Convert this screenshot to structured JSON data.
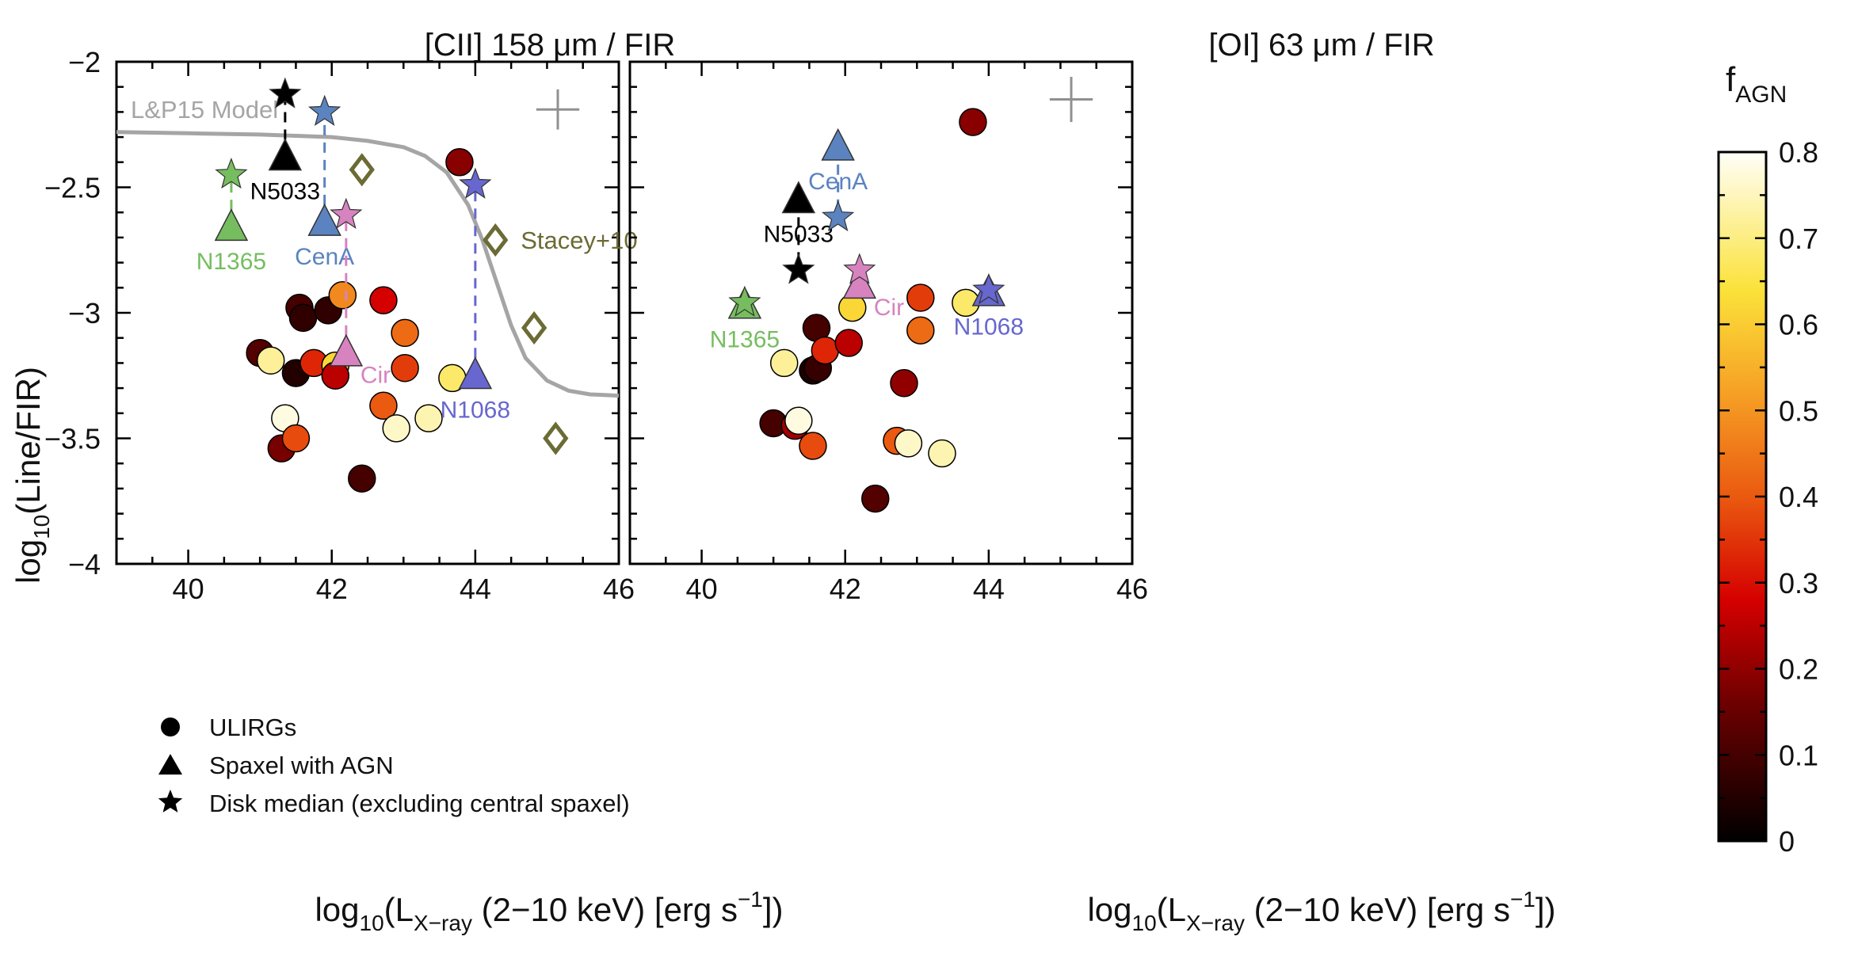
{
  "figure": {
    "y_label_prefix": "log",
    "y_label_sub": "10",
    "y_label_main": "(Line/FIR)",
    "x_label_prefix": "log",
    "x_label_sub1": "10",
    "x_label_L": "(L",
    "x_label_sub2": "X−ray",
    "x_label_unit": " (2−10 keV) [erg s",
    "x_label_sup": "−1",
    "x_label_end": "])"
  },
  "colorbar": {
    "label": "f",
    "label_sub": "AGN",
    "ticks": [
      0,
      0.1,
      0.2,
      0.3,
      0.4,
      0.5,
      0.6,
      0.7,
      0.8
    ],
    "tick_labels": [
      "0",
      "0.1",
      "0.2",
      "0.3",
      "0.4",
      "0.5",
      "0.6",
      "0.7",
      "0.8"
    ],
    "range": [
      0,
      0.8
    ]
  },
  "legend": {
    "items": [
      {
        "marker": "circle",
        "label": "ULIRGs"
      },
      {
        "marker": "triangle",
        "label": "Spaxel with AGN"
      },
      {
        "marker": "star",
        "label": "Disk median (excluding central spaxel)"
      }
    ]
  },
  "colors": {
    "CenA": "#5b83c0",
    "N1365": "#76bd5f",
    "Cir": "#d783bf",
    "N1068": "#6767cf",
    "N5033": "#000000",
    "model": "#a5a5a5",
    "stacey": "#6b6b35",
    "errbar": "#909090"
  },
  "chart_data": [
    {
      "type": "scatter",
      "title": "[CII] 158 μm / FIR",
      "xlabel": "log10(L_X-ray (2–10 keV) [erg s^-1])",
      "ylabel": "log10(Line/FIR)",
      "xlim": [
        39,
        46
      ],
      "ylim": [
        -4,
        -2
      ],
      "xticks": [
        40,
        42,
        44,
        46
      ],
      "xtick_labels": [
        "40",
        "42",
        "44",
        "46"
      ],
      "yticks": [
        -4,
        -3.5,
        -3,
        -2.5,
        -2
      ],
      "ytick_labels": [
        "−4",
        "−3.5",
        "−3",
        "−2.5",
        "−2"
      ],
      "ulirgs": [
        {
          "x": 41.0,
          "y": -3.16,
          "f": 0.12
        },
        {
          "x": 41.15,
          "y": -3.19,
          "f": 0.72
        },
        {
          "x": 41.3,
          "y": -3.54,
          "f": 0.17
        },
        {
          "x": 41.35,
          "y": -3.42,
          "f": 0.78
        },
        {
          "x": 41.5,
          "y": -3.24,
          "f": 0.05
        },
        {
          "x": 41.5,
          "y": -3.5,
          "f": 0.38
        },
        {
          "x": 41.55,
          "y": -2.98,
          "f": 0.1
        },
        {
          "x": 41.6,
          "y": -3.02,
          "f": 0.07
        },
        {
          "x": 41.75,
          "y": -3.2,
          "f": 0.33
        },
        {
          "x": 41.95,
          "y": -2.99,
          "f": 0.07
        },
        {
          "x": 42.05,
          "y": -3.21,
          "f": 0.62
        },
        {
          "x": 42.05,
          "y": -3.25,
          "f": 0.25
        },
        {
          "x": 42.15,
          "y": -2.93,
          "f": 0.48
        },
        {
          "x": 42.42,
          "y": -3.66,
          "f": 0.1
        },
        {
          "x": 42.72,
          "y": -2.95,
          "f": 0.28
        },
        {
          "x": 42.72,
          "y": -3.37,
          "f": 0.4
        },
        {
          "x": 42.9,
          "y": -3.46,
          "f": 0.76
        },
        {
          "x": 43.02,
          "y": -3.08,
          "f": 0.43
        },
        {
          "x": 43.02,
          "y": -3.22,
          "f": 0.36
        },
        {
          "x": 43.35,
          "y": -3.42,
          "f": 0.74
        },
        {
          "x": 43.68,
          "y": -3.26,
          "f": 0.68
        },
        {
          "x": 43.78,
          "y": -2.4,
          "f": 0.19
        }
      ],
      "agn": [
        {
          "name": "N5033",
          "tri": {
            "x": 41.35,
            "y": -2.38
          },
          "star": {
            "x": 41.35,
            "y": -2.13
          },
          "label_pos": "below"
        },
        {
          "name": "N1365",
          "tri": {
            "x": 40.6,
            "y": -2.66
          },
          "star": {
            "x": 40.6,
            "y": -2.45
          },
          "label_pos": "below"
        },
        {
          "name": "CenA",
          "tri": {
            "x": 41.9,
            "y": -2.64
          },
          "star": {
            "x": 41.9,
            "y": -2.2
          },
          "label_pos": "below"
        },
        {
          "name": "Cir",
          "tri": {
            "x": 42.2,
            "y": -3.16
          },
          "star": {
            "x": 42.2,
            "y": -2.61
          },
          "label_pos": "right"
        },
        {
          "name": "N1068",
          "tri": {
            "x": 44.0,
            "y": -3.25
          },
          "star": {
            "x": 44.0,
            "y": -2.49
          },
          "label_pos": "below"
        }
      ],
      "stacey10": {
        "label": "Stacey+10",
        "points": [
          {
            "x": 42.42,
            "y": -2.43
          },
          {
            "x": 44.28,
            "y": -2.71
          },
          {
            "x": 44.82,
            "y": -3.06
          },
          {
            "x": 45.12,
            "y": -3.5
          }
        ]
      },
      "model": {
        "label": "L&P15 Model",
        "x": [
          39.0,
          40.0,
          41.0,
          41.5,
          42.0,
          42.5,
          43.0,
          43.3,
          43.6,
          43.9,
          44.1,
          44.3,
          44.5,
          44.7,
          45.0,
          45.3,
          45.6,
          46.0
        ],
        "y": [
          -2.28,
          -2.285,
          -2.29,
          -2.295,
          -2.3,
          -2.315,
          -2.34,
          -2.375,
          -2.44,
          -2.57,
          -2.71,
          -2.88,
          -3.05,
          -3.18,
          -3.27,
          -3.31,
          -3.325,
          -3.33
        ]
      },
      "error_bar": {
        "x": 45.15,
        "y": -2.19,
        "dx": 0.3,
        "dy": 0.08
      }
    },
    {
      "type": "scatter",
      "title": "[OI] 63 μm / FIR",
      "xlabel": "log10(L_X-ray (2–10 keV) [erg s^-1])",
      "ylabel": "log10(Line/FIR)",
      "xlim": [
        39,
        46
      ],
      "ylim": [
        -4,
        -2
      ],
      "xticks": [
        40,
        42,
        44,
        46
      ],
      "xtick_labels": [
        "40",
        "42",
        "44",
        "46"
      ],
      "ulirgs": [
        {
          "x": 41.0,
          "y": -3.44,
          "f": 0.1
        },
        {
          "x": 41.15,
          "y": -3.2,
          "f": 0.72
        },
        {
          "x": 41.3,
          "y": -3.45,
          "f": 0.22
        },
        {
          "x": 41.35,
          "y": -3.43,
          "f": 0.78
        },
        {
          "x": 41.55,
          "y": -3.23,
          "f": 0.04
        },
        {
          "x": 41.55,
          "y": -3.53,
          "f": 0.38
        },
        {
          "x": 41.6,
          "y": -3.06,
          "f": 0.1
        },
        {
          "x": 41.62,
          "y": -3.22,
          "f": 0.08
        },
        {
          "x": 41.72,
          "y": -3.15,
          "f": 0.33
        },
        {
          "x": 42.05,
          "y": -3.12,
          "f": 0.25
        },
        {
          "x": 42.1,
          "y": -2.98,
          "f": 0.62
        },
        {
          "x": 42.42,
          "y": -3.74,
          "f": 0.12
        },
        {
          "x": 42.72,
          "y": -3.51,
          "f": 0.4
        },
        {
          "x": 42.82,
          "y": -3.28,
          "f": 0.2
        },
        {
          "x": 42.88,
          "y": -3.52,
          "f": 0.76
        },
        {
          "x": 43.05,
          "y": -2.94,
          "f": 0.36
        },
        {
          "x": 43.05,
          "y": -3.07,
          "f": 0.43
        },
        {
          "x": 43.35,
          "y": -3.56,
          "f": 0.74
        },
        {
          "x": 43.68,
          "y": -2.96,
          "f": 0.68
        },
        {
          "x": 43.78,
          "y": -2.24,
          "f": 0.19
        }
      ],
      "agn": [
        {
          "name": "N5033",
          "tri": {
            "x": 41.35,
            "y": -2.55
          },
          "star": {
            "x": 41.35,
            "y": -2.83
          },
          "label_pos": "below"
        },
        {
          "name": "N1365",
          "tri": {
            "x": 40.6,
            "y": -2.97
          },
          "star": {
            "x": 40.6,
            "y": -2.96
          },
          "label_pos": "below"
        },
        {
          "name": "CenA",
          "tri": {
            "x": 41.9,
            "y": -2.34
          },
          "star": {
            "x": 41.9,
            "y": -2.62
          },
          "label_pos": "below"
        },
        {
          "name": "Cir",
          "tri": {
            "x": 42.2,
            "y": -2.89
          },
          "star": {
            "x": 42.2,
            "y": -2.83
          },
          "label_pos": "right"
        },
        {
          "name": "N1068",
          "tri": {
            "x": 44.0,
            "y": -2.92
          },
          "star": {
            "x": 44.0,
            "y": -2.91
          },
          "label_pos": "below"
        }
      ],
      "error_bar": {
        "x": 45.15,
        "y": -2.15,
        "dx": 0.3,
        "dy": 0.09
      }
    }
  ]
}
